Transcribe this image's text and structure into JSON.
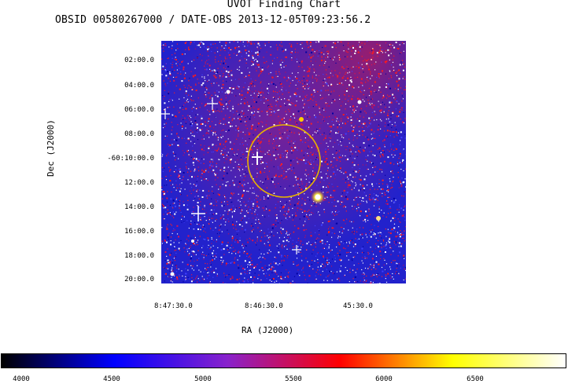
{
  "header": {
    "title": "UVOT Finding Chart",
    "subtitle": "OBSID 00580267000 / DATE-OBS 2013-12-05T09:23:56.2"
  },
  "axes": {
    "dec_label": "Dec (J2000)",
    "ra_label": "RA (J2000)",
    "dec_ticks": [
      "02:00.0",
      "04:00.0",
      "06:00.0",
      "08:00.0",
      "-60:10:00.0",
      "12:00.0",
      "14:00.0",
      "16:00.0",
      "18:00.0",
      "20:00.0"
    ],
    "ra_ticks": [
      "8:47:30.0",
      "8:46:30.0",
      "45:30.0"
    ]
  },
  "colorbar": {
    "ticks": [
      "4000",
      "4500",
      "5000",
      "5500",
      "6000",
      "6500"
    ],
    "colors": [
      "#000000",
      "#0000ff",
      "#8822cc",
      "#ff0000",
      "#ffff00",
      "#ffffff"
    ]
  },
  "overlay": {
    "circle_color": "#e8b400"
  }
}
